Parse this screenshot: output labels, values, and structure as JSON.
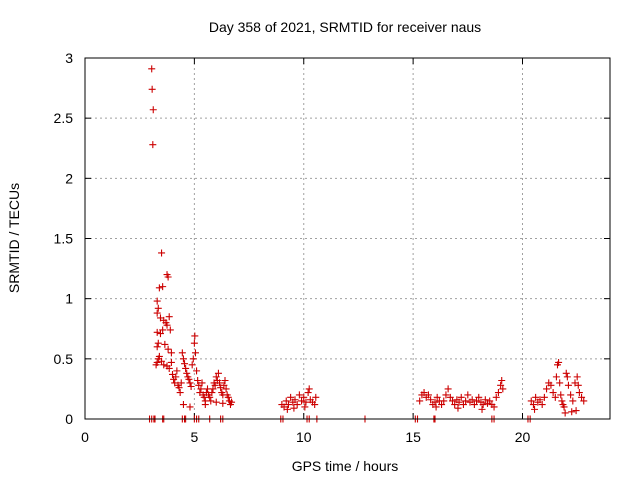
{
  "chart_data": {
    "type": "scatter",
    "title": "Day 358 of 2021, SRMTID for receiver naus",
    "xlabel": "GPS time / hours",
    "ylabel": "SRMTID / TECUs",
    "xlim": [
      0,
      24
    ],
    "ylim": [
      0,
      3
    ],
    "xticks": [
      0,
      5,
      10,
      15,
      20
    ],
    "yticks": [
      0,
      0.5,
      1,
      1.5,
      2,
      2.5,
      3
    ],
    "xtick_labels": [
      "0",
      "5",
      "10",
      "15",
      "20"
    ],
    "ytick_labels": [
      "0",
      "0.5",
      "1",
      "1.5",
      "2",
      "2.5",
      "3"
    ],
    "grid": true,
    "marker": "+",
    "color": "#cc0000",
    "series": [
      {
        "name": "SRMTID",
        "points": [
          [
            3.05,
            2.91
          ],
          [
            3.07,
            2.74
          ],
          [
            3.12,
            2.57
          ],
          [
            3.1,
            2.28
          ],
          [
            3.5,
            1.38
          ],
          [
            3.75,
            1.2
          ],
          [
            3.8,
            1.18
          ],
          [
            3.55,
            1.1
          ],
          [
            3.4,
            1.09
          ],
          [
            3.3,
            0.98
          ],
          [
            3.35,
            0.92
          ],
          [
            3.3,
            0.88
          ],
          [
            3.45,
            0.84
          ],
          [
            3.6,
            0.82
          ],
          [
            3.7,
            0.8
          ],
          [
            3.75,
            0.78
          ],
          [
            3.85,
            0.85
          ],
          [
            3.9,
            0.74
          ],
          [
            3.55,
            0.74
          ],
          [
            3.45,
            0.71
          ],
          [
            3.3,
            0.72
          ],
          [
            3.35,
            0.63
          ],
          [
            3.3,
            0.6
          ],
          [
            3.65,
            0.62
          ],
          [
            3.8,
            0.58
          ],
          [
            3.95,
            0.55
          ],
          [
            3.4,
            0.52
          ],
          [
            3.35,
            0.5
          ],
          [
            3.5,
            0.48
          ],
          [
            3.6,
            0.45
          ],
          [
            3.75,
            0.44
          ],
          [
            3.85,
            0.42
          ],
          [
            3.3,
            0.47
          ],
          [
            3.25,
            0.45
          ],
          [
            3.95,
            0.47
          ],
          [
            4.0,
            0.37
          ],
          [
            4.05,
            0.33
          ],
          [
            4.1,
            0.3
          ],
          [
            4.15,
            0.35
          ],
          [
            4.2,
            0.4
          ],
          [
            4.25,
            0.28
          ],
          [
            4.3,
            0.26
          ],
          [
            4.35,
            0.22
          ],
          [
            4.4,
            0.3
          ],
          [
            4.45,
            0.55
          ],
          [
            4.5,
            0.5
          ],
          [
            4.55,
            0.46
          ],
          [
            4.6,
            0.42
          ],
          [
            4.65,
            0.38
          ],
          [
            4.7,
            0.35
          ],
          [
            4.75,
            0.33
          ],
          [
            4.8,
            0.3
          ],
          [
            4.85,
            0.27
          ],
          [
            4.9,
            0.45
          ],
          [
            4.95,
            0.5
          ],
          [
            5.0,
            0.63
          ],
          [
            5.02,
            0.69
          ],
          [
            5.05,
            0.55
          ],
          [
            5.1,
            0.4
          ],
          [
            5.15,
            0.32
          ],
          [
            5.2,
            0.28
          ],
          [
            5.25,
            0.22
          ],
          [
            5.3,
            0.25
          ],
          [
            5.35,
            0.3
          ],
          [
            5.4,
            0.2
          ],
          [
            5.45,
            0.18
          ],
          [
            5.5,
            0.15
          ],
          [
            5.55,
            0.22
          ],
          [
            5.6,
            0.25
          ],
          [
            5.65,
            0.2
          ],
          [
            5.7,
            0.18
          ],
          [
            5.75,
            0.15
          ],
          [
            5.8,
            0.22
          ],
          [
            5.85,
            0.25
          ],
          [
            5.9,
            0.3
          ],
          [
            5.95,
            0.28
          ],
          [
            6.0,
            0.35
          ],
          [
            6.05,
            0.32
          ],
          [
            6.1,
            0.38
          ],
          [
            6.15,
            0.3
          ],
          [
            6.2,
            0.26
          ],
          [
            6.25,
            0.22
          ],
          [
            6.3,
            0.2
          ],
          [
            6.35,
            0.28
          ],
          [
            6.4,
            0.32
          ],
          [
            6.45,
            0.25
          ],
          [
            6.5,
            0.2
          ],
          [
            6.55,
            0.18
          ],
          [
            6.6,
            0.15
          ],
          [
            6.65,
            0.12
          ],
          [
            6.7,
            0.14
          ],
          [
            4.5,
            0.12
          ],
          [
            4.8,
            0.1
          ],
          [
            5.5,
            0.12
          ],
          [
            6.0,
            0.14
          ],
          [
            6.3,
            0.13
          ],
          [
            2.95,
            0.0
          ],
          [
            3.05,
            0.0
          ],
          [
            3.15,
            0.0
          ],
          [
            3.2,
            0.0
          ],
          [
            3.55,
            0.0
          ],
          [
            3.6,
            0.0
          ],
          [
            4.45,
            0.0
          ],
          [
            4.55,
            0.0
          ],
          [
            4.6,
            0.0
          ],
          [
            5.0,
            0.0
          ],
          [
            5.1,
            0.0
          ],
          [
            5.2,
            0.0
          ],
          [
            5.7,
            0.0
          ],
          [
            6.2,
            0.0
          ],
          [
            6.3,
            0.0
          ],
          [
            8.95,
            0.0
          ],
          [
            9.05,
            0.0
          ],
          [
            10.15,
            0.0
          ],
          [
            10.25,
            0.0
          ],
          [
            10.6,
            0.0
          ],
          [
            12.8,
            0.0
          ],
          [
            15.1,
            0.0
          ],
          [
            15.2,
            0.0
          ],
          [
            15.95,
            0.0
          ],
          [
            16.0,
            0.0
          ],
          [
            18.6,
            0.0
          ],
          [
            18.7,
            0.0
          ],
          [
            20.25,
            0.0
          ],
          [
            20.35,
            0.0
          ],
          [
            9.0,
            0.12
          ],
          [
            9.1,
            0.1
          ],
          [
            9.2,
            0.15
          ],
          [
            9.3,
            0.12
          ],
          [
            9.4,
            0.18
          ],
          [
            9.5,
            0.14
          ],
          [
            9.6,
            0.16
          ],
          [
            9.7,
            0.12
          ],
          [
            9.8,
            0.2
          ],
          [
            9.9,
            0.15
          ],
          [
            10.0,
            0.18
          ],
          [
            10.1,
            0.14
          ],
          [
            10.2,
            0.22
          ],
          [
            10.25,
            0.25
          ],
          [
            10.3,
            0.16
          ],
          [
            10.4,
            0.14
          ],
          [
            10.5,
            0.12
          ],
          [
            10.55,
            0.18
          ],
          [
            9.25,
            0.08
          ],
          [
            9.55,
            0.09
          ],
          [
            10.05,
            0.1
          ],
          [
            15.3,
            0.15
          ],
          [
            15.4,
            0.2
          ],
          [
            15.5,
            0.22
          ],
          [
            15.6,
            0.18
          ],
          [
            15.7,
            0.2
          ],
          [
            15.8,
            0.16
          ],
          [
            15.9,
            0.12
          ],
          [
            16.0,
            0.14
          ],
          [
            16.1,
            0.18
          ],
          [
            16.2,
            0.15
          ],
          [
            16.3,
            0.12
          ],
          [
            16.4,
            0.15
          ],
          [
            16.5,
            0.2
          ],
          [
            16.6,
            0.25
          ],
          [
            16.7,
            0.18
          ],
          [
            16.8,
            0.15
          ],
          [
            16.9,
            0.12
          ],
          [
            17.0,
            0.16
          ],
          [
            17.1,
            0.14
          ],
          [
            17.2,
            0.18
          ],
          [
            17.3,
            0.12
          ],
          [
            17.4,
            0.15
          ],
          [
            17.5,
            0.2
          ],
          [
            17.6,
            0.14
          ],
          [
            17.7,
            0.16
          ],
          [
            17.8,
            0.12
          ],
          [
            17.9,
            0.15
          ],
          [
            18.0,
            0.18
          ],
          [
            18.1,
            0.14
          ],
          [
            18.2,
            0.12
          ],
          [
            18.3,
            0.16
          ],
          [
            18.4,
            0.13
          ],
          [
            18.5,
            0.15
          ],
          [
            18.6,
            0.12
          ],
          [
            18.7,
            0.1
          ],
          [
            18.8,
            0.18
          ],
          [
            18.9,
            0.22
          ],
          [
            19.0,
            0.28
          ],
          [
            19.05,
            0.32
          ],
          [
            19.1,
            0.25
          ],
          [
            16.05,
            0.1
          ],
          [
            17.05,
            0.09
          ],
          [
            18.15,
            0.08
          ],
          [
            20.4,
            0.15
          ],
          [
            20.5,
            0.12
          ],
          [
            20.6,
            0.18
          ],
          [
            20.7,
            0.14
          ],
          [
            20.8,
            0.16
          ],
          [
            20.9,
            0.12
          ],
          [
            21.0,
            0.18
          ],
          [
            21.1,
            0.25
          ],
          [
            21.2,
            0.3
          ],
          [
            21.3,
            0.28
          ],
          [
            21.4,
            0.22
          ],
          [
            21.5,
            0.18
          ],
          [
            21.55,
            0.35
          ],
          [
            21.6,
            0.45
          ],
          [
            21.65,
            0.47
          ],
          [
            21.7,
            0.3
          ],
          [
            21.75,
            0.2
          ],
          [
            21.8,
            0.15
          ],
          [
            21.85,
            0.12
          ],
          [
            21.9,
            0.1
          ],
          [
            22.0,
            0.38
          ],
          [
            22.05,
            0.35
          ],
          [
            22.1,
            0.28
          ],
          [
            22.2,
            0.2
          ],
          [
            22.3,
            0.15
          ],
          [
            22.4,
            0.3
          ],
          [
            22.5,
            0.35
          ],
          [
            22.55,
            0.28
          ],
          [
            22.6,
            0.22
          ],
          [
            22.7,
            0.18
          ],
          [
            22.8,
            0.15
          ],
          [
            21.95,
            0.05
          ],
          [
            22.25,
            0.06
          ],
          [
            22.45,
            0.07
          ],
          [
            20.55,
            0.08
          ]
        ]
      }
    ]
  }
}
